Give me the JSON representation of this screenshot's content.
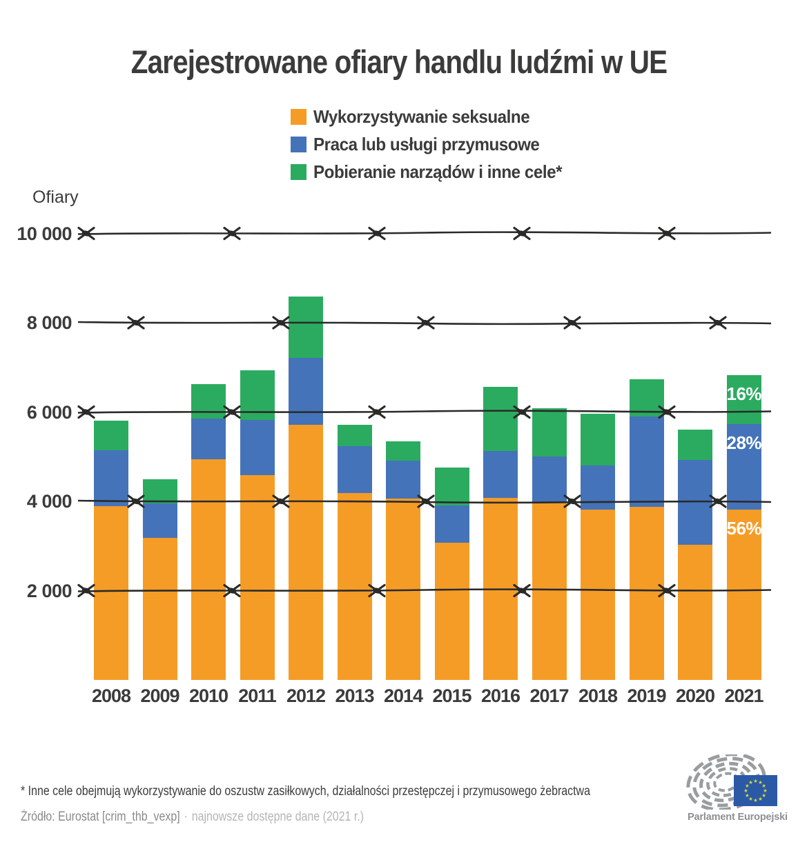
{
  "title": "Zarejestrowane ofiary handlu ludźmi w UE",
  "legend": {
    "items": [
      {
        "label": "Wykorzystywanie seksualne",
        "color": "#F59C27"
      },
      {
        "label": "Praca lub usługi przymusowe",
        "color": "#4473B9"
      },
      {
        "label": "Pobieranie narządów i inne cele*",
        "color": "#2BAB60"
      }
    ]
  },
  "y_axis": {
    "label": "Ofiary",
    "ticks": [
      {
        "label": "10 000",
        "value": 10000
      },
      {
        "label": "8 000",
        "value": 8000
      },
      {
        "label": "6 000",
        "value": 6000
      },
      {
        "label": "4 000",
        "value": 4000
      },
      {
        "label": "2 000",
        "value": 2000
      }
    ]
  },
  "chart_data": {
    "type": "bar",
    "stacked": true,
    "title": "Zarejestrowane ofiary handlu ludźmi w UE",
    "ylabel": "Ofiary",
    "ylim": [
      0,
      10000
    ],
    "gridlines": [
      2000,
      4000,
      6000,
      8000,
      10000
    ],
    "grid_style": "barbed-wire",
    "legend_position": "top",
    "categories": [
      "2008",
      "2009",
      "2010",
      "2011",
      "2012",
      "2013",
      "2014",
      "2015",
      "2016",
      "2017",
      "2018",
      "2019",
      "2020",
      "2021"
    ],
    "series": [
      {
        "name": "Wykorzystywanie seksualne",
        "color": "#F59C27",
        "values": [
          3890,
          3180,
          4940,
          4580,
          5710,
          4190,
          4060,
          3080,
          4080,
          3970,
          3810,
          3880,
          3020,
          3820
        ]
      },
      {
        "name": "Praca lub usługi przymusowe",
        "color": "#4473B9",
        "values": [
          1250,
          770,
          920,
          1240,
          1500,
          1040,
          850,
          820,
          1040,
          1030,
          990,
          2020,
          1910,
          1910
        ]
      },
      {
        "name": "Pobieranie narządów i inne cele*",
        "color": "#2BAB60",
        "values": [
          670,
          540,
          770,
          1110,
          1380,
          480,
          430,
          860,
          1440,
          1090,
          1160,
          830,
          670,
          1090
        ]
      }
    ],
    "annotations": [
      {
        "category": "2021",
        "series_index": 0,
        "label": "56%"
      },
      {
        "category": "2021",
        "series_index": 1,
        "label": "28%"
      },
      {
        "category": "2021",
        "series_index": 2,
        "label": "16%"
      }
    ]
  },
  "footer": {
    "footnote": "* Inne cele obejmują wykorzystywanie do oszustw zasiłkowych, działalności przestępczej i przymusowego żebractwa",
    "source": "Źródło: Eurostat [crim_thb_vexp]",
    "separator": "·",
    "source_note": "najnowsze dostępne dane (2021 r.)"
  },
  "logo": {
    "caption": "Parlament Europejski"
  },
  "colors": {
    "text_dark": "#3B3B3A",
    "wire": "#2A2A28",
    "logo_gray": "#9A9DA0",
    "flag_blue": "#2B59A6",
    "star_yellow": "#D3DA3E"
  }
}
